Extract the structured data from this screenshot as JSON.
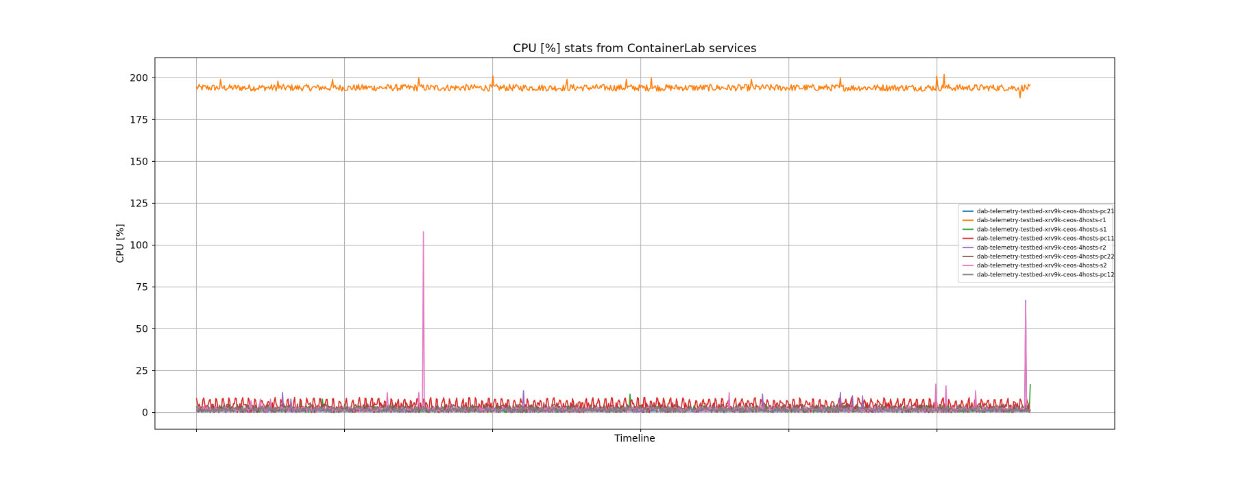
{
  "chart_data": {
    "type": "line",
    "title": "CPU [%] stats from ContainerLab services",
    "xlabel": "Timeline",
    "ylabel": "CPU [%]",
    "xlim": [
      -0.28,
      6.2
    ],
    "ylim": [
      -10,
      212
    ],
    "y_ticks": [
      0,
      25,
      50,
      75,
      100,
      125,
      150,
      175,
      200
    ],
    "x_grid_positions": [
      0,
      1,
      2,
      3,
      4,
      5
    ],
    "x_tick_labels_visible": false,
    "grid": true,
    "legend_position": "right",
    "series": [
      {
        "name": "dab-telemetry-testbed-xrv9k-ceos-4hosts-pc21",
        "color": "#1f77b4",
        "baseline": 0.8,
        "spikes": []
      },
      {
        "name": "dab-telemetry-testbed-xrv9k-ceos-4hosts-r1",
        "color": "#ff7f0e",
        "baseline": 194,
        "noise": 2,
        "spikes": [
          [
            0.16,
            199
          ],
          [
            0.55,
            198
          ],
          [
            0.92,
            199
          ],
          [
            1.5,
            200
          ],
          [
            2.0,
            201
          ],
          [
            2.5,
            199
          ],
          [
            2.9,
            199
          ],
          [
            3.07,
            200
          ],
          [
            3.75,
            199
          ],
          [
            4.35,
            200
          ],
          [
            5.0,
            201
          ],
          [
            5.05,
            202
          ],
          [
            5.56,
            188
          ]
        ]
      },
      {
        "name": "dab-telemetry-testbed-xrv9k-ceos-4hosts-s1",
        "color": "#2ca02c",
        "baseline": 2,
        "noise": 2,
        "spikes": [
          [
            0.7,
            8
          ],
          [
            0.85,
            8
          ],
          [
            2.93,
            11
          ],
          [
            5.63,
            17
          ]
        ]
      },
      {
        "name": "dab-telemetry-testbed-xrv9k-ceos-4hosts-pc11",
        "color": "#d62728",
        "baseline": 3,
        "noise": 3,
        "pulse": 6,
        "spikes": []
      },
      {
        "name": "dab-telemetry-testbed-xrv9k-ceos-4hosts-r2",
        "color": "#9467bd",
        "baseline": 1.5,
        "noise": 1.5,
        "spikes": [
          [
            0.58,
            12
          ],
          [
            0.64,
            8
          ],
          [
            2.21,
            13
          ],
          [
            3.82,
            11
          ],
          [
            4.35,
            12
          ],
          [
            4.43,
            10
          ],
          [
            4.5,
            10
          ],
          [
            5.6,
            67
          ]
        ]
      },
      {
        "name": "dab-telemetry-testbed-xrv9k-ceos-4hosts-pc22",
        "color": "#8c564b",
        "baseline": 2.5,
        "noise": 2.5,
        "spikes": []
      },
      {
        "name": "dab-telemetry-testbed-xrv9k-ceos-4hosts-s2",
        "color": "#e377c2",
        "baseline": 2,
        "noise": 1.5,
        "spikes": [
          [
            0.37,
            7
          ],
          [
            0.43,
            8
          ],
          [
            0.5,
            8
          ],
          [
            1.29,
            12
          ],
          [
            1.5,
            12
          ],
          [
            1.53,
            108
          ],
          [
            3.6,
            12
          ],
          [
            4.99,
            17
          ],
          [
            5.06,
            16
          ],
          [
            5.26,
            13
          ],
          [
            5.6,
            65
          ]
        ]
      },
      {
        "name": "dab-telemetry-testbed-xrv9k-ceos-4hosts-pc12",
        "color": "#7f7f7f",
        "baseline": 1.8,
        "noise": 1.5,
        "spikes": []
      }
    ]
  }
}
